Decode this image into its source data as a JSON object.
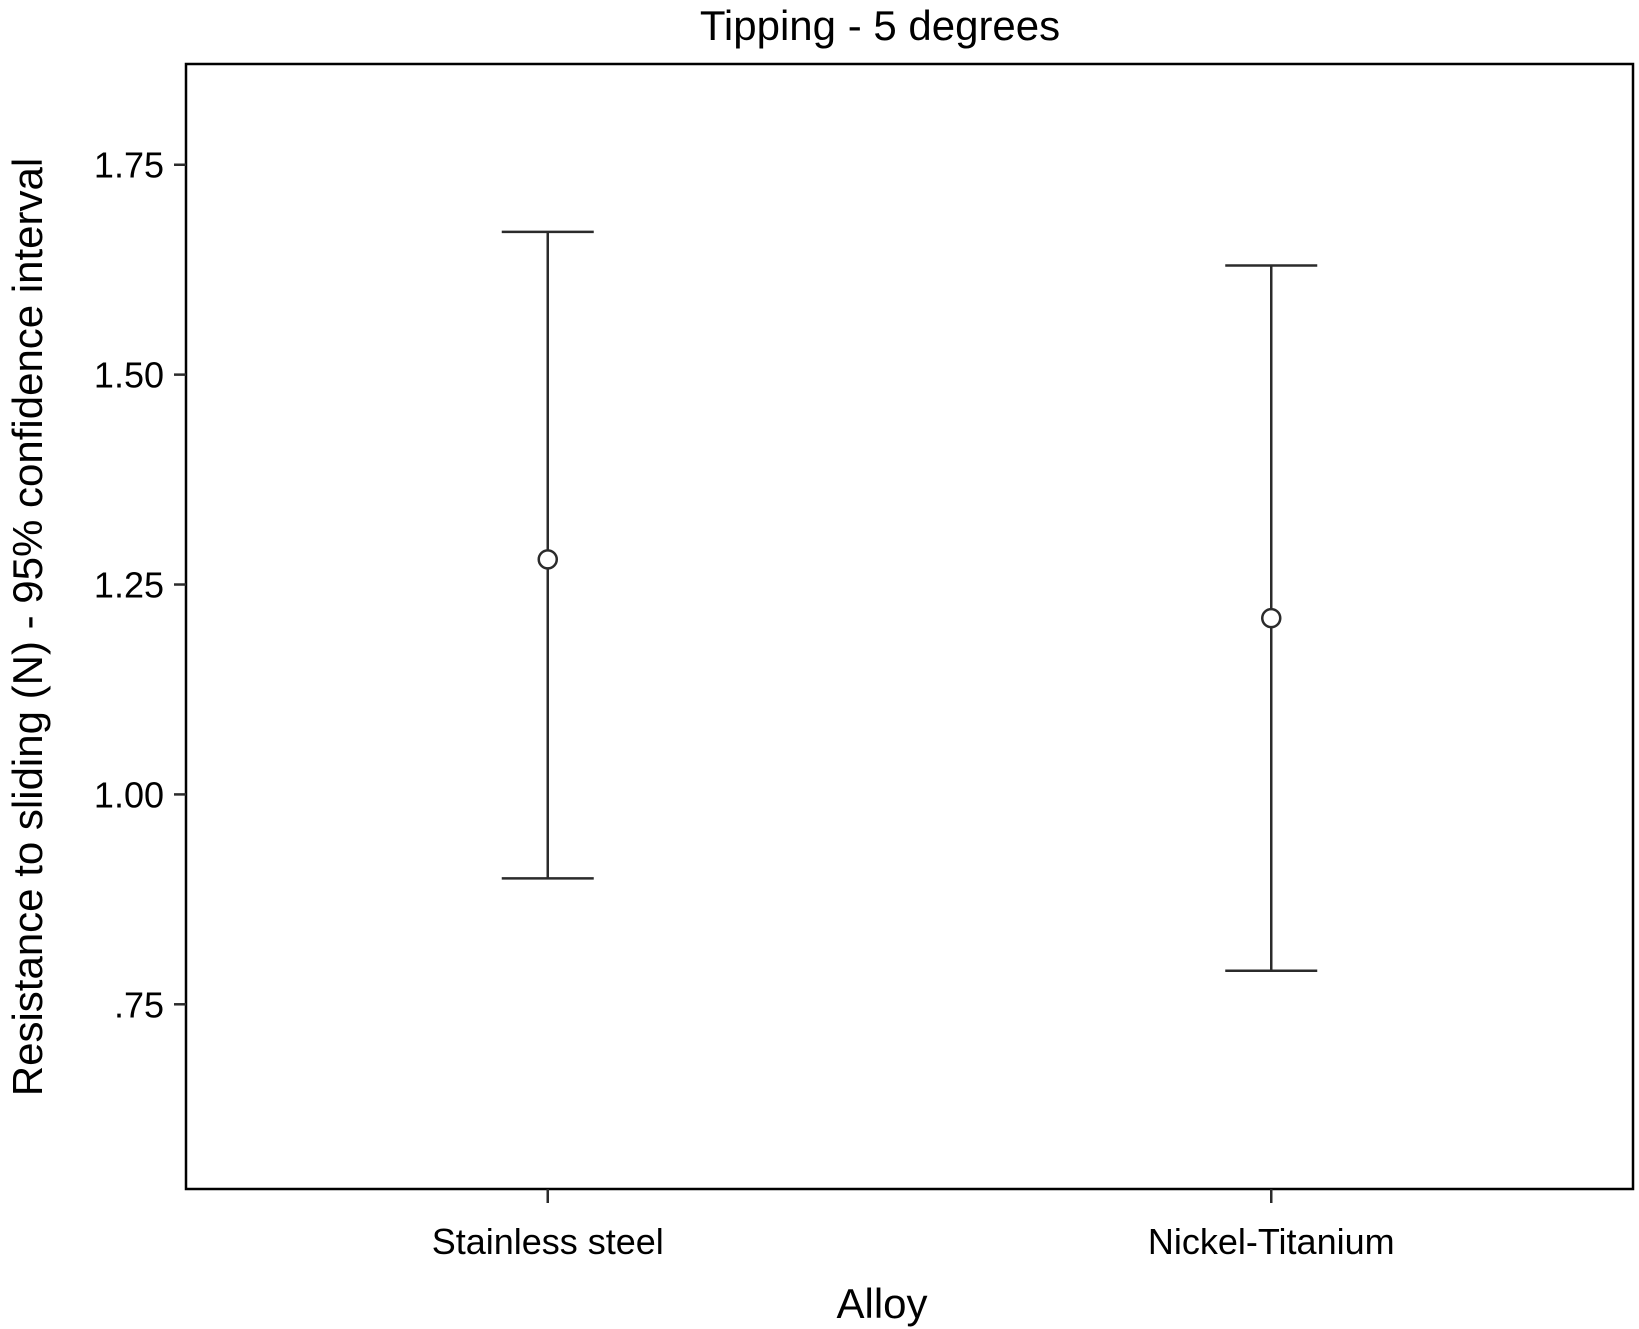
{
  "chart_data": {
    "type": "errorbar",
    "title": "Tipping - 5 degrees",
    "xlabel": "Alloy",
    "ylabel": "Resistance to sliding (N) - 95% confidence interval",
    "categories": [
      "Stainless steel",
      "Nickel-Titanium"
    ],
    "series": [
      {
        "mean": [
          1.28,
          1.21
        ],
        "ci_lower": [
          0.9,
          0.79
        ],
        "ci_upper": [
          1.67,
          1.63
        ]
      }
    ],
    "yticks": [
      0.75,
      1.0,
      1.25,
      1.5,
      1.75
    ],
    "ytick_labels": [
      ".75",
      "1.00",
      "1.25",
      "1.50",
      "1.75"
    ],
    "ylim": [
      0.53,
      1.87
    ],
    "grid": false,
    "colors": {
      "line": "#2b2b2b",
      "frame": "#000000"
    }
  }
}
